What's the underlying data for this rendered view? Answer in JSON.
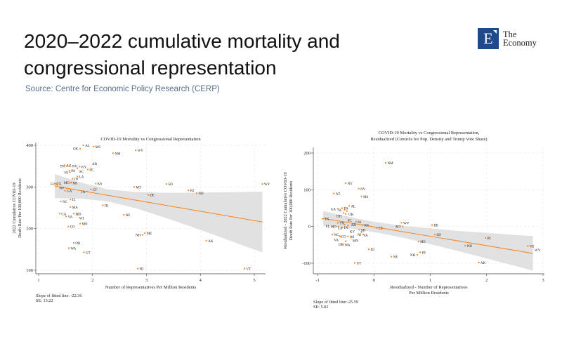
{
  "header": {
    "title": "2020–2022 cumulative mortality and congressional representation",
    "source": "Source: Centre for Economic Policy Research (CERP)"
  },
  "logo": {
    "letter": "E",
    "line1": "The",
    "line2": "Economy",
    "color": "#1f4a8a"
  },
  "colors": {
    "points": "#f08a2c",
    "fit": "#f08a2c",
    "band": "#dcdcdc",
    "grid": "#e6e6e6"
  },
  "chart_data": [
    {
      "type": "scatter",
      "title": [
        "COVID-19 Mortality vs Congressional Representation"
      ],
      "xlabel": [
        "Number of Representatives Per Million Residents"
      ],
      "ylabel": [
        "2022 Cumulative COVID-19",
        "Death Rate Per 100,000 Residents"
      ],
      "xlim": [
        1,
        5
      ],
      "ylim": [
        100,
        400
      ],
      "xticks": [
        1,
        2,
        3,
        4,
        5
      ],
      "yticks": [
        100,
        200,
        300,
        400
      ],
      "grid": true,
      "notes": [
        "Slope of fitted line: -22.36",
        "SE: 13.22"
      ],
      "fit": {
        "slope": -22.36,
        "intercept": 331,
        "x_range": [
          1.3,
          5.15
        ]
      },
      "ci_band": {
        "x": [
          1.3,
          1.8,
          2.3,
          2.8,
          3.3,
          3.8,
          4.3,
          4.8,
          5.15
        ],
        "lower": [
          273,
          272,
          265,
          249,
          228,
          206,
          183,
          159,
          143
        ],
        "upper": [
          331,
          310,
          294,
          288,
          286,
          286,
          287,
          288,
          289
        ]
      },
      "points": [
        {
          "label": "AL",
          "x": 1.83,
          "y": 400
        },
        {
          "label": "MS",
          "x": 2.02,
          "y": 397
        },
        {
          "label": "OK",
          "x": 1.77,
          "y": 392
        },
        {
          "label": "NM",
          "x": 2.38,
          "y": 381
        },
        {
          "label": "WV",
          "x": 2.8,
          "y": 388
        },
        {
          "label": "AZ",
          "x": 1.48,
          "y": 352
        },
        {
          "label": "TN",
          "x": 1.52,
          "y": 350
        },
        {
          "label": "NV",
          "x": 1.59,
          "y": 350
        },
        {
          "label": "KY",
          "x": 1.76,
          "y": 349
        },
        {
          "label": "SC",
          "x": 1.72,
          "y": 345
        },
        {
          "label": "SC",
          "x": 1.91,
          "y": 342
        },
        {
          "label": "AR",
          "x": 1.96,
          "y": 342
        },
        {
          "label": "PA",
          "x": 1.57,
          "y": 339
        },
        {
          "label": "NJ",
          "x": 1.58,
          "y": 335
        },
        {
          "label": "LA",
          "x": 1.72,
          "y": 325
        },
        {
          "label": "IN",
          "x": 1.63,
          "y": 320
        },
        {
          "label": "MO",
          "x": 1.61,
          "y": 311
        },
        {
          "label": "MI",
          "x": 1.6,
          "y": 310
        },
        {
          "label": "KS",
          "x": 2.06,
          "y": 308
        },
        {
          "label": "TX",
          "x": 1.3,
          "y": 308
        },
        {
          "label": "FL",
          "x": 1.33,
          "y": 307
        },
        {
          "label": "NY",
          "x": 1.35,
          "y": 305
        },
        {
          "label": "SD",
          "x": 3.37,
          "y": 307
        },
        {
          "label": "WY",
          "x": 5.15,
          "y": 307
        },
        {
          "label": "MT",
          "x": 2.77,
          "y": 300
        },
        {
          "label": "CT",
          "x": 1.97,
          "y": 294
        },
        {
          "label": "IA",
          "x": 1.9,
          "y": 289
        },
        {
          "label": "RI",
          "x": 3.78,
          "y": 292
        },
        {
          "label": "ND",
          "x": 3.93,
          "y": 285
        },
        {
          "label": "GA",
          "x": 1.49,
          "y": 291
        },
        {
          "label": "DE",
          "x": 3.03,
          "y": 281
        },
        {
          "label": "IL",
          "x": 1.59,
          "y": 270
        },
        {
          "label": "NC",
          "x": 1.41,
          "y": 265
        },
        {
          "label": "ID",
          "x": 2.19,
          "y": 256
        },
        {
          "label": "MA",
          "x": 1.59,
          "y": 252
        },
        {
          "label": "CA",
          "x": 1.39,
          "y": 236
        },
        {
          "label": "MD",
          "x": 1.65,
          "y": 236
        },
        {
          "label": "WI",
          "x": 1.72,
          "y": 233
        },
        {
          "label": "VA",
          "x": 1.51,
          "y": 229
        },
        {
          "label": "NE",
          "x": 2.58,
          "y": 233
        },
        {
          "label": "MN",
          "x": 1.77,
          "y": 212
        },
        {
          "label": "CO",
          "x": 1.55,
          "y": 205
        },
        {
          "label": "ME",
          "x": 2.97,
          "y": 189
        },
        {
          "label": "NH",
          "x": 2.93,
          "y": 185
        },
        {
          "label": "AK",
          "x": 4.11,
          "y": 171
        },
        {
          "label": "OR",
          "x": 1.65,
          "y": 166
        },
        {
          "label": "WA",
          "x": 1.56,
          "y": 153
        },
        {
          "label": "UT",
          "x": 1.84,
          "y": 143
        },
        {
          "label": "HI",
          "x": 2.84,
          "y": 104
        },
        {
          "label": "VT",
          "x": 4.82,
          "y": 104
        }
      ]
    },
    {
      "type": "scatter",
      "title": [
        "COVID-19 Mortality vs Congressional Representation,",
        "Residualized (Controls for Pop. Density and Trump Vote Share)"
      ],
      "xlabel": [
        "Residualized - Number of Representatives",
        "Per Million Residents"
      ],
      "ylabel": [
        "Residualized - 2022 Cumulative COVID-19",
        "Death Rate Per 100,000 Residents"
      ],
      "xlim": [
        -1,
        3
      ],
      "ylim": [
        -100,
        200
      ],
      "xticks": [
        -1,
        0,
        1,
        2,
        3
      ],
      "yticks": [
        -100,
        0,
        100,
        200
      ],
      "grid": true,
      "notes": [
        "Slope of fitted line:-25.59",
        "SE: 5.02"
      ],
      "fit": {
        "slope": -25.59,
        "intercept": -1,
        "x_range": [
          -0.9,
          2.82
        ]
      },
      "ci_band": {
        "x": [
          -0.9,
          -0.4,
          0,
          0.5,
          1,
          1.5,
          2,
          2.5,
          2.82
        ],
        "lower": [
          2,
          -6,
          -15,
          -30,
          -48,
          -67,
          -87,
          -107,
          -120
        ],
        "upper": [
          42,
          25,
          13,
          2,
          -5,
          -12,
          -17,
          -23,
          -26
        ]
      },
      "points": [
        {
          "label": "NM",
          "x": 0.21,
          "y": 173
        },
        {
          "label": "NY",
          "x": -0.5,
          "y": 118
        },
        {
          "label": "NV",
          "x": -0.27,
          "y": 103
        },
        {
          "label": "AZ",
          "x": -0.71,
          "y": 90
        },
        {
          "label": "MS",
          "x": -0.22,
          "y": 82
        },
        {
          "label": "AL",
          "x": -0.44,
          "y": 56
        },
        {
          "label": "GA",
          "x": -0.64,
          "y": 48
        },
        {
          "label": "PA",
          "x": -0.56,
          "y": 50
        },
        {
          "label": "SC",
          "x": -0.52,
          "y": 45
        },
        {
          "label": "OK",
          "x": -0.48,
          "y": 42
        },
        {
          "label": "OH",
          "x": -0.54,
          "y": 37
        },
        {
          "label": "SC",
          "x": -0.5,
          "y": 34
        },
        {
          "label": "TX",
          "x": -0.91,
          "y": 21
        },
        {
          "label": "IA",
          "x": -0.32,
          "y": 13
        },
        {
          "label": "AR",
          "x": -0.28,
          "y": 13
        },
        {
          "label": "WV",
          "x": 0.49,
          "y": 10
        },
        {
          "label": "DE",
          "x": 1.03,
          "y": 4
        },
        {
          "label": "TN",
          "x": -0.64,
          "y": 10
        },
        {
          "label": "LA",
          "x": -0.52,
          "y": 5
        },
        {
          "label": "KY",
          "x": -0.46,
          "y": 3
        },
        {
          "label": "KS",
          "x": -0.2,
          "y": 4
        },
        {
          "label": "FL",
          "x": -0.75,
          "y": 1
        },
        {
          "label": "MO",
          "x": -0.63,
          "y": 0
        },
        {
          "label": "IN",
          "x": -0.56,
          "y": -3
        },
        {
          "label": "MT",
          "x": 0.51,
          "y": 0
        },
        {
          "label": "CT",
          "x": 0.05,
          "y": -4
        },
        {
          "label": "MI",
          "x": -0.26,
          "y": -9
        },
        {
          "label": "VA",
          "x": -0.22,
          "y": -15
        },
        {
          "label": "NJ",
          "x": -0.19,
          "y": -22
        },
        {
          "label": "SD",
          "x": 1.08,
          "y": -22
        },
        {
          "label": "RI",
          "x": 1.98,
          "y": -31
        },
        {
          "label": "NC",
          "x": -0.74,
          "y": -22
        },
        {
          "label": "CO",
          "x": -0.61,
          "y": -26
        },
        {
          "label": "VA",
          "x": -0.59,
          "y": -28
        },
        {
          "label": "WI",
          "x": -0.46,
          "y": -27
        },
        {
          "label": "MN",
          "x": -0.41,
          "y": -30
        },
        {
          "label": "OR",
          "x": -0.5,
          "y": -40
        },
        {
          "label": "ME",
          "x": 0.79,
          "y": -41
        },
        {
          "label": "VT",
          "x": 2.73,
          "y": -53
        },
        {
          "label": "WY",
          "x": 2.82,
          "y": -56
        },
        {
          "label": "ND",
          "x": 1.62,
          "y": -52
        },
        {
          "label": "WA",
          "x": -0.55,
          "y": -49
        },
        {
          "label": "ID",
          "x": -0.09,
          "y": -62
        },
        {
          "label": "HI",
          "x": 0.82,
          "y": -70
        },
        {
          "label": "NH",
          "x": 0.77,
          "y": -77
        },
        {
          "label": "NE",
          "x": 0.31,
          "y": -82
        },
        {
          "label": "AK",
          "x": 1.86,
          "y": -98
        },
        {
          "label": "UT",
          "x": -0.34,
          "y": -99
        }
      ]
    }
  ]
}
